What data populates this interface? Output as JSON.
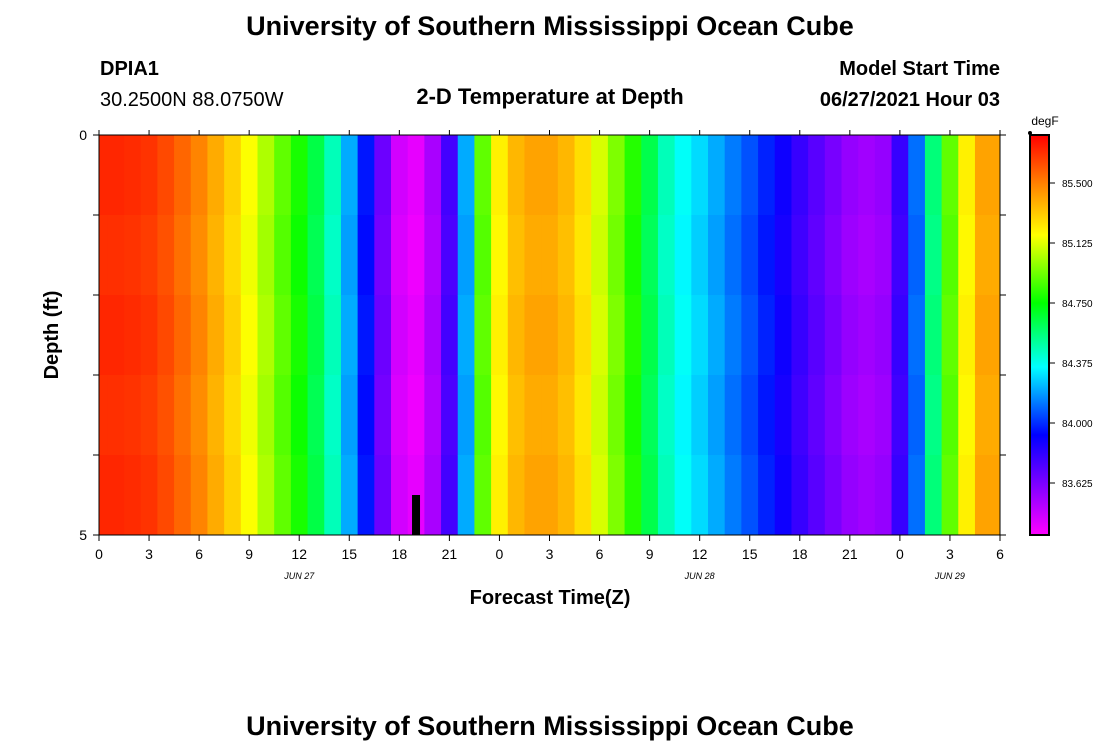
{
  "header": {
    "title": "University of Southern Mississippi Ocean Cube",
    "station_id": "DPIA1",
    "location": "30.2500N  88.0750W",
    "subtitle": "2-D Temperature at Depth",
    "start_label": "Model Start Time",
    "start_time": "06/27/2021 Hour 03"
  },
  "footer": {
    "title": "University of Southern Mississippi Ocean Cube"
  },
  "chart_data": {
    "type": "heatmap",
    "title": "2-D Temperature at Depth",
    "xlabel": "Forecast Time(Z)",
    "ylabel": "Depth (ft)",
    "x_tick_labels": [
      "0",
      "3",
      "6",
      "9",
      "12",
      "15",
      "18",
      "21",
      "0",
      "3",
      "6",
      "9",
      "12",
      "15",
      "18",
      "21",
      "0",
      "3",
      "6"
    ],
    "x_date_labels": [
      {
        "label": "JUN 27",
        "tick_index": 4
      },
      {
        "label": "JUN 28",
        "tick_index": 12
      },
      {
        "label": "JUN 29",
        "tick_index": 17
      }
    ],
    "y_tick_labels": [
      "0",
      "5"
    ],
    "ylim": [
      0,
      5
    ],
    "colorbar": {
      "unit": "degF",
      "labels": [
        "85.500",
        "85.125",
        "84.750",
        "84.375",
        "84.000",
        "83.625"
      ],
      "range": [
        83.3,
        85.8
      ]
    },
    "depth_levels": 5,
    "time_hours": [
      0,
      1,
      2,
      3,
      4,
      5,
      6,
      7,
      8,
      9,
      10,
      11,
      12,
      13,
      14,
      15,
      16,
      17,
      18,
      19,
      20,
      21,
      22,
      23,
      24,
      25,
      26,
      27,
      28,
      29,
      30,
      31,
      32,
      33,
      34,
      35,
      36,
      37,
      38,
      39,
      40,
      41,
      42,
      43,
      44,
      45,
      46,
      47,
      48,
      49,
      50,
      51,
      52,
      53,
      54
    ],
    "temperature_degF": [
      85.7,
      85.7,
      85.69,
      85.67,
      85.62,
      85.55,
      85.48,
      85.38,
      85.28,
      85.16,
      85.03,
      84.9,
      84.78,
      84.63,
      84.45,
      84.2,
      83.95,
      83.65,
      83.4,
      83.35,
      83.5,
      83.75,
      84.2,
      84.9,
      85.2,
      85.35,
      85.4,
      85.4,
      85.35,
      85.25,
      85.1,
      84.95,
      84.8,
      84.62,
      84.45,
      84.35,
      84.28,
      84.2,
      84.12,
      84.05,
      83.97,
      83.88,
      83.78,
      83.7,
      83.62,
      83.55,
      83.52,
      83.55,
      83.78,
      84.1,
      84.55,
      84.9,
      85.2,
      85.4,
      85.4
    ],
    "markers": [
      {
        "label": "",
        "x_hour": 19,
        "depth_ft": 4.5
      }
    ]
  }
}
